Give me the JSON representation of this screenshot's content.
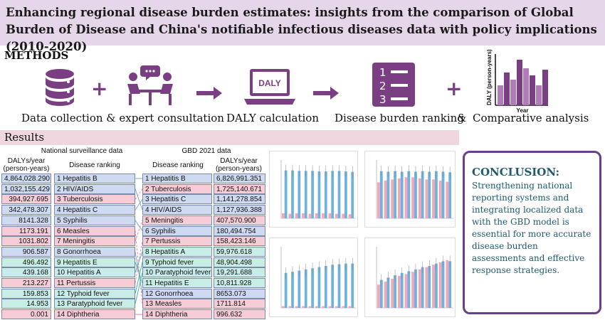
{
  "title": "Enhancing regional disease burden estimates: insights from the comparison of Global Burden of Disease and China's notifiable infectious diseases data with policy implications (2010-2020)",
  "methods": {
    "label": "METHODS",
    "steps": [
      {
        "caption": "Data collection & expert consultation",
        "icon": "database-icon"
      },
      {
        "caption": "DALY calculation",
        "icon": "laptop-icon",
        "screen_text": "DALY"
      },
      {
        "caption": "Disease burden ranking",
        "icon": "ranked-list-icon"
      },
      {
        "caption": "Comparative analysis",
        "icon": "bar-chart-icon",
        "ylabel": "DALY (person-years)",
        "xlabel": "Year"
      }
    ],
    "ampersand": "&"
  },
  "results": {
    "label": "Results",
    "national": {
      "title": "National surveillance data",
      "col_value": "DALYs/year (person-years)",
      "col_rank": "Disease ranking",
      "rows": [
        {
          "value": "4,864,028.290",
          "rank": "1  Hepatitis B",
          "color": "#cfdaf0"
        },
        {
          "value": "1,032,155.429",
          "rank": "2  HIV/AIDS",
          "color": "#cfdaf0"
        },
        {
          "value": "394,927.695",
          "rank": "3  Tuberculosis",
          "color": "#f6cdd6"
        },
        {
          "value": "342,478.307",
          "rank": "4  Hepatitis C",
          "color": "#cfdaf0"
        },
        {
          "value": "8141.328",
          "rank": "5  Syphilis",
          "color": "#cfdaf0"
        },
        {
          "value": "1173.191",
          "rank": "6  Measles",
          "color": "#f6cdd6"
        },
        {
          "value": "1031.802",
          "rank": "7  Meningitis",
          "color": "#f6cdd6"
        },
        {
          "value": "906.587",
          "rank": "8  Gonorrhoea",
          "color": "#cfdaf0"
        },
        {
          "value": "496.492",
          "rank": "9  Hepatitis E",
          "color": "#c8ece6"
        },
        {
          "value": "439.168",
          "rank": "10 Hepatitis A",
          "color": "#c8ece6"
        },
        {
          "value": "213.227",
          "rank": "11 Pertussis",
          "color": "#f6cdd6"
        },
        {
          "value": "159.853",
          "rank": "12 Typhoid fever",
          "color": "#c8ece6"
        },
        {
          "value": "14.953",
          "rank": "13 Paratyphoid fever",
          "color": "#c8ece6"
        },
        {
          "value": "0.001",
          "rank": "14 Diphtheria",
          "color": "#f6cdd6"
        }
      ]
    },
    "gbd": {
      "title": "GBD 2021 data",
      "col_rank": "Disease ranking",
      "col_value": "DALYs/year (person-years)",
      "rows": [
        {
          "rank": "1  Hepatitis B",
          "value": "6,826,991.351",
          "color": "#cfdaf0"
        },
        {
          "rank": "2  Tuberculosis",
          "value": "1,725,140.671",
          "color": "#f6cdd6"
        },
        {
          "rank": "3  Hepatitis C",
          "value": "1,141,278.854",
          "color": "#cfdaf0"
        },
        {
          "rank": "4  HIV/AIDS",
          "value": "1,127,936.388",
          "color": "#cfdaf0"
        },
        {
          "rank": "5  Meningitis",
          "value": "407,570.900",
          "color": "#f6cdd6"
        },
        {
          "rank": "6  Syphilis",
          "value": "180,494.754",
          "color": "#cfdaf0"
        },
        {
          "rank": "7  Pertussis",
          "value": "158,423.146",
          "color": "#f6cdd6"
        },
        {
          "rank": "8  Hepatitis A",
          "value": "59,976.618",
          "color": "#c8ece6"
        },
        {
          "rank": "9  Typhoid fever",
          "value": "48,904.498",
          "color": "#c8ece6"
        },
        {
          "rank": "10 Paratyphoid fever",
          "value": "19,291.688",
          "color": "#c8ece6"
        },
        {
          "rank": "11 Hepatitis E",
          "value": "10,811.928",
          "color": "#c8ece6"
        },
        {
          "rank": "12 Gonorrhoea",
          "value": "8653.073",
          "color": "#cfdaf0"
        },
        {
          "rank": "13 Measles",
          "value": "1711.814",
          "color": "#f6cdd6"
        },
        {
          "rank": "14 Diphtheria",
          "value": "996.632",
          "color": "#f6cdd6"
        }
      ],
      "links": [
        [
          0,
          0
        ],
        [
          1,
          3
        ],
        [
          2,
          1
        ],
        [
          3,
          2
        ],
        [
          4,
          5
        ],
        [
          5,
          12
        ],
        [
          6,
          4
        ],
        [
          7,
          11
        ],
        [
          8,
          10
        ],
        [
          9,
          7
        ],
        [
          10,
          6
        ],
        [
          11,
          8
        ],
        [
          12,
          9
        ],
        [
          13,
          13
        ]
      ]
    }
  },
  "conclusion": {
    "title": "CONCLUSION:",
    "text": "Strengthening national reporting systems and integrating localized data with the GBD model is essential for more accurate disease burden assessments and effective response strategies."
  },
  "colors": {
    "pink": "#f2a7bd",
    "blue": "#6fb3dc",
    "purple": "#7a3f82"
  }
}
